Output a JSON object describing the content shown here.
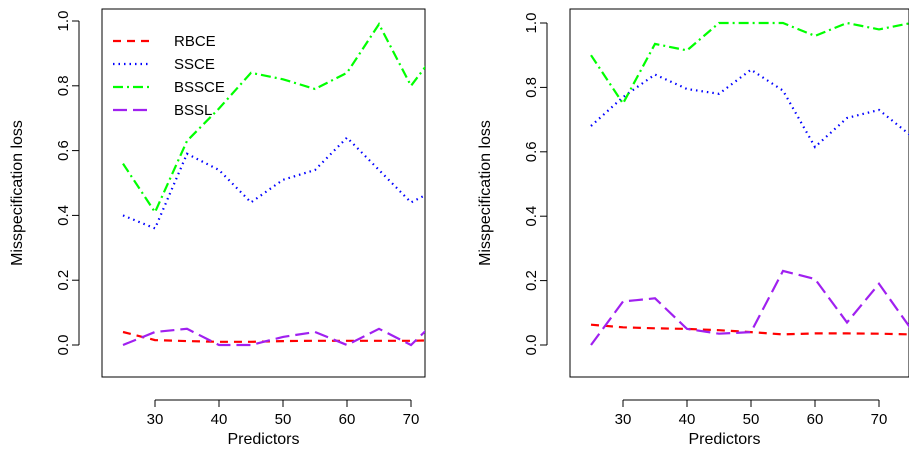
{
  "chart_data": [
    {
      "type": "line",
      "xlabel": "Predictors",
      "ylabel": "Misspecification loss",
      "xlim": [
        25,
        75
      ],
      "ylim": [
        0,
        1.0
      ],
      "x_ticks": [
        30,
        40,
        50,
        60,
        70
      ],
      "y_ticks": [
        0.0,
        0.2,
        0.4,
        0.6,
        0.8,
        1.0
      ],
      "y_tick_labels": [
        "0.0",
        "0.2",
        "0.4",
        "0.6",
        "0.8",
        "1.0"
      ],
      "legend_position": "top-left",
      "x": [
        25,
        30,
        35,
        40,
        45,
        50,
        55,
        60,
        65,
        70,
        75
      ],
      "series": [
        {
          "name": "RBCE",
          "color": "#ff0000",
          "dash": "8,6",
          "values": [
            0.04,
            0.015,
            0.012,
            0.01,
            0.01,
            0.012,
            0.013,
            0.013,
            0.013,
            0.013,
            0.015
          ]
        },
        {
          "name": "SSCE",
          "color": "#0000ff",
          "dash": "1.5,4",
          "values": [
            0.4,
            0.36,
            0.59,
            0.54,
            0.44,
            0.51,
            0.54,
            0.64,
            0.54,
            0.44,
            0.49
          ]
        },
        {
          "name": "BSSCE",
          "color": "#00ff00",
          "dash": "10,4,2,4",
          "values": [
            0.56,
            0.41,
            0.63,
            0.73,
            0.84,
            0.82,
            0.79,
            0.84,
            0.99,
            0.8,
            0.93
          ]
        },
        {
          "name": "BSSL",
          "color": "#a020f0",
          "dash": "14,6",
          "values": [
            0.0,
            0.04,
            0.05,
            0.0,
            0.0,
            0.025,
            0.04,
            0.0,
            0.05,
            0.0,
            0.095
          ]
        }
      ]
    },
    {
      "type": "line",
      "xlabel": "Predictors",
      "ylabel": "Misspecification loss",
      "xlim": [
        25,
        75
      ],
      "ylim": [
        0,
        1.0
      ],
      "x_ticks": [
        30,
        40,
        50,
        60,
        70
      ],
      "y_ticks": [
        0.0,
        0.2,
        0.4,
        0.6,
        0.8,
        1.0
      ],
      "y_tick_labels": [
        "0.0",
        "0.2",
        "0.4",
        "0.6",
        "0.8",
        "1.0"
      ],
      "x": [
        25,
        30,
        35,
        40,
        45,
        50,
        55,
        60,
        65,
        70,
        75
      ],
      "series": [
        {
          "color": "#ff0000",
          "dash": "8,6",
          "values": [
            0.063,
            0.055,
            0.052,
            0.05,
            0.046,
            0.04,
            0.033,
            0.036,
            0.036,
            0.035,
            0.033
          ]
        },
        {
          "color": "#0000ff",
          "dash": "1.5,4",
          "values": [
            0.68,
            0.77,
            0.84,
            0.795,
            0.78,
            0.855,
            0.79,
            0.615,
            0.705,
            0.73,
            0.65
          ]
        },
        {
          "color": "#00ff00",
          "dash": "10,4,2,4",
          "values": [
            0.9,
            0.75,
            0.935,
            0.915,
            1.0,
            1.0,
            1.0,
            0.96,
            1.0,
            0.98,
            1.0
          ]
        },
        {
          "color": "#a020f0",
          "dash": "14,6",
          "values": [
            0.0,
            0.135,
            0.145,
            0.05,
            0.035,
            0.04,
            0.23,
            0.205,
            0.07,
            0.19,
            0.05
          ]
        }
      ]
    }
  ]
}
